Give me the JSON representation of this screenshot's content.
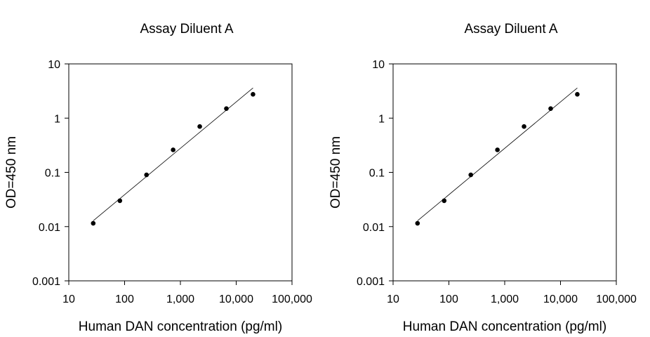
{
  "chart_data": [
    {
      "type": "scatter",
      "title": "Assay Diluent A",
      "xlabel": "Human DAN concentration (pg/ml)",
      "ylabel": "OD=450 nm",
      "x_scale": "log",
      "y_scale": "log",
      "xlim": [
        10,
        100000
      ],
      "ylim": [
        0.001,
        10
      ],
      "x_ticks": [
        "10",
        "100",
        "1,000",
        "10,000",
        "100,000"
      ],
      "y_ticks": [
        "0.001",
        "0.01",
        "0.1",
        "1",
        "10"
      ],
      "grid": false,
      "series": [
        {
          "x": [
            27.4,
            82.3,
            247,
            741,
            2222,
            6667,
            20000
          ],
          "y": [
            0.0115,
            0.03,
            0.09,
            0.26,
            0.7,
            1.5,
            2.75
          ]
        }
      ],
      "fit_line": {
        "x": [
          27.4,
          20000
        ],
        "y": [
          0.0128,
          3.6
        ]
      }
    },
    {
      "type": "scatter",
      "title": "Assay Diluent A",
      "xlabel": "Human DAN concentration (pg/ml)",
      "ylabel": "OD=450 nm",
      "x_scale": "log",
      "y_scale": "log",
      "xlim": [
        10,
        100000
      ],
      "ylim": [
        0.001,
        10
      ],
      "x_ticks": [
        "10",
        "100",
        "1,000",
        "10,000",
        "100,000"
      ],
      "y_ticks": [
        "0.001",
        "0.01",
        "0.1",
        "1",
        "10"
      ],
      "grid": false,
      "series": [
        {
          "x": [
            27.4,
            82.3,
            247,
            741,
            2222,
            6667,
            20000
          ],
          "y": [
            0.0115,
            0.03,
            0.09,
            0.26,
            0.7,
            1.5,
            2.75
          ]
        }
      ],
      "fit_line": {
        "x": [
          27.4,
          20000
        ],
        "y": [
          0.0128,
          3.6
        ]
      }
    }
  ]
}
